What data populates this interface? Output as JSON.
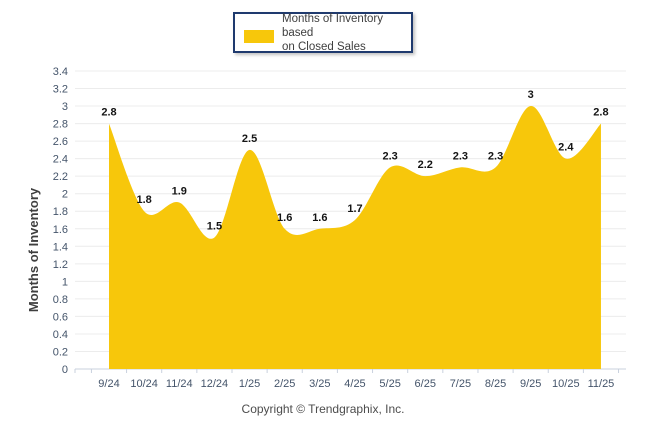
{
  "legend": {
    "label_lines": [
      "Months of Inventory based",
      "on Closed Sales"
    ]
  },
  "footer": {
    "copyright": "Copyright © Trendgraphix, Inc."
  },
  "chart_data": {
    "type": "area",
    "title": "",
    "series_name": "Months of Inventory based on Closed Sales",
    "xlabel": "",
    "ylabel": "Months of Inventory",
    "categories": [
      "9/24",
      "10/24",
      "11/24",
      "12/24",
      "1/25",
      "2/25",
      "3/25",
      "4/25",
      "5/25",
      "6/25",
      "7/25",
      "8/25",
      "9/25",
      "10/25",
      "11/25"
    ],
    "values": [
      2.8,
      1.8,
      1.9,
      1.5,
      2.5,
      1.6,
      1.6,
      1.7,
      2.3,
      2.2,
      2.3,
      2.3,
      3,
      2.4,
      2.8
    ],
    "data_labels": [
      "2.8",
      "1.8",
      "1.9",
      "1.5",
      "2.5",
      "1.6",
      "1.6",
      "1.7",
      "2.3",
      "2.2",
      "2.3",
      "2.3",
      "3",
      "2.4",
      "2.8"
    ],
    "ylim": [
      0,
      3.4
    ],
    "ytick_step": 0.2,
    "yticks": [
      "0",
      "0.2",
      "0.4",
      "0.6",
      "0.8",
      "1",
      "1.2",
      "1.4",
      "1.6",
      "1.8",
      "2",
      "2.2",
      "2.4",
      "2.6",
      "2.8",
      "3",
      "3.2",
      "3.4"
    ],
    "grid": true,
    "legend_position": "top-center",
    "smooth": true,
    "colors": {
      "area": "#F7C70B",
      "gridline": "#ECECEC",
      "axis": "#C9D1DE",
      "tick_label": "#44546A",
      "data_label": "#141414",
      "ylabel_color": "#3F3F3F"
    }
  }
}
